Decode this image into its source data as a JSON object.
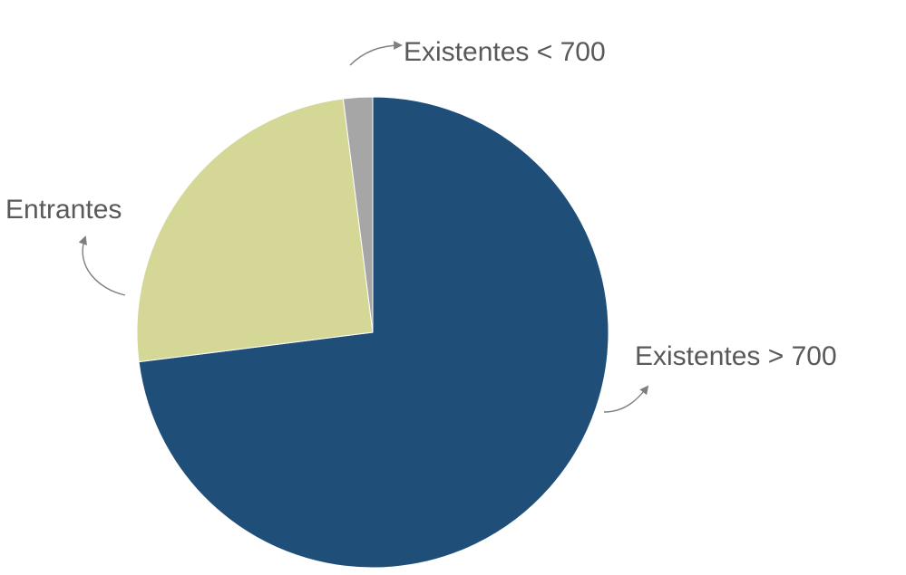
{
  "chart_data": {
    "type": "pie",
    "title": "",
    "start_angle_deg": 0,
    "direction": "clockwise",
    "legend": "none",
    "slices": [
      {
        "label": "Existentes > 700",
        "value": 73,
        "color": "#1F4E79"
      },
      {
        "label": "Entrantes",
        "value": 25,
        "color": "#D4D795"
      },
      {
        "label": "Existentes < 700",
        "value": 2,
        "color": "#A6A6A6"
      }
    ]
  }
}
